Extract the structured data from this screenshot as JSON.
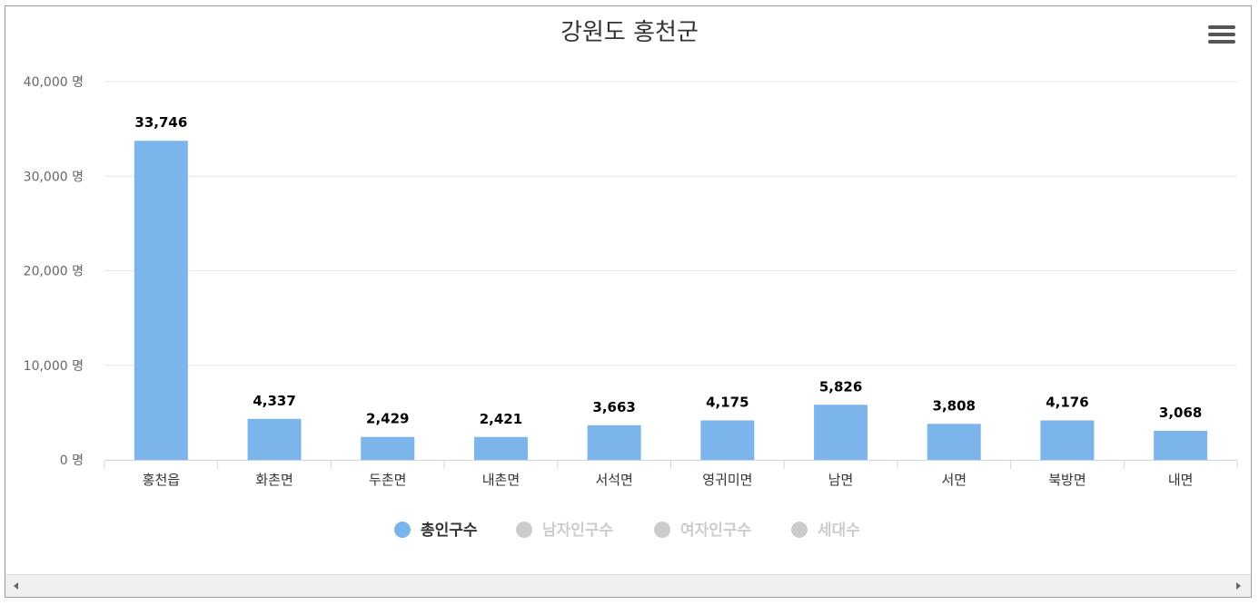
{
  "chart_data": {
    "type": "bar",
    "title": "강원도 홍천군",
    "categories": [
      "홍천읍",
      "화촌면",
      "두촌면",
      "내촌면",
      "서석면",
      "영귀미면",
      "남면",
      "서면",
      "북방면",
      "내면"
    ],
    "series": [
      {
        "name": "총인구수",
        "values": [
          33746,
          4337,
          2429,
          2421,
          3663,
          4175,
          5826,
          3808,
          4176,
          3068
        ],
        "visible": true
      }
    ],
    "data_labels": [
      "33,746",
      "4,337",
      "2,429",
      "2,421",
      "3,663",
      "4,175",
      "5,826",
      "3,808",
      "4,176",
      "3,068"
    ],
    "y_ticks": [
      0,
      10000,
      20000,
      30000,
      40000
    ],
    "y_tick_labels": [
      "0 명",
      "10,000 명",
      "20,000 명",
      "30,000 명",
      "40,000 명"
    ],
    "ylim": [
      0,
      40000
    ],
    "grid": true,
    "legend_position": "bottom",
    "legend": [
      {
        "label": "총인구수",
        "active": true
      },
      {
        "label": "남자인구수",
        "active": false
      },
      {
        "label": "여자인구수",
        "active": false
      },
      {
        "label": "세대수",
        "active": false
      }
    ],
    "colors": {
      "bar": "#7cb5ec",
      "legend_inactive": "#cccccc",
      "grid": "#e6e6e6",
      "axis": "#ccd6eb",
      "text": "#333333",
      "label_muted": "#666666"
    }
  },
  "ui": {
    "menu_icon": "hamburger-icon",
    "scroll_left_icon": "triangle-left-icon",
    "scroll_right_icon": "triangle-right-icon"
  }
}
